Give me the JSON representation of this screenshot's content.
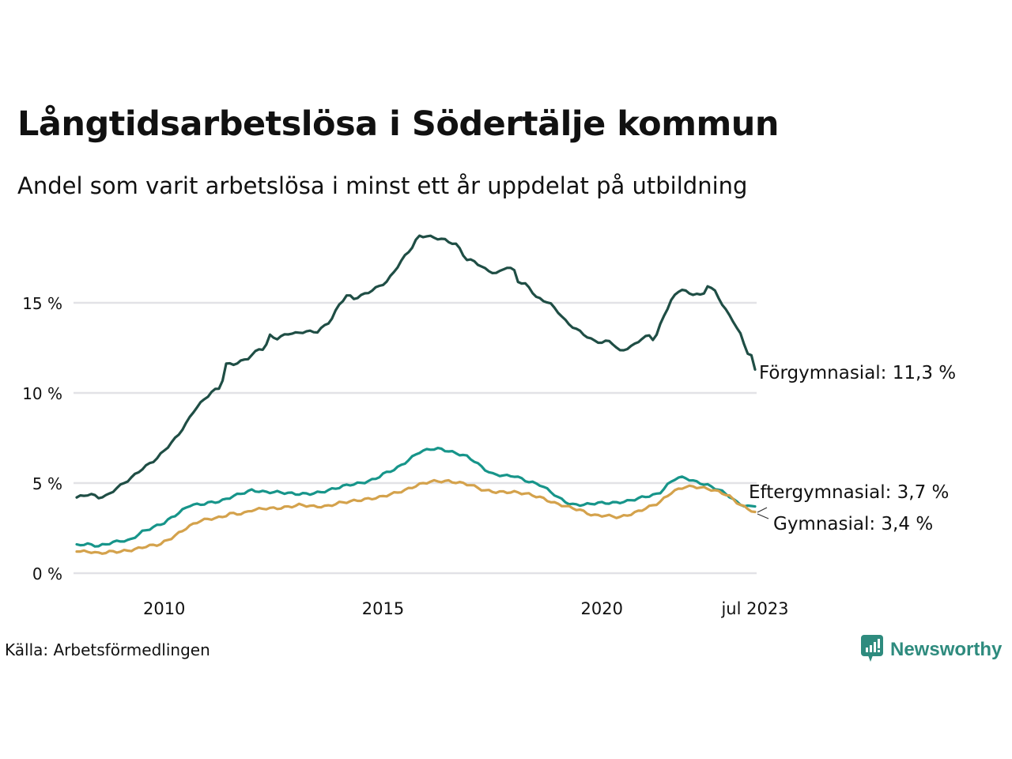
{
  "header": {
    "title": "Långtidsarbetslösa i Södertälje kommun",
    "subtitle": "Andel som varit arbetslösa i minst ett år uppdelat på utbildning"
  },
  "footer": {
    "source": "Källa: Arbetsförmedlingen",
    "brand": "Newsworthy",
    "brand_icon": "bar-chart-speech-bubble-icon",
    "brand_color": "#2e8b7e"
  },
  "chart_data": {
    "type": "line",
    "title": "Långtidsarbetslösa i Södertälje kommun",
    "subtitle": "Andel som varit arbetslösa i minst ett år uppdelat på utbildning",
    "xlabel": "",
    "ylabel": "",
    "x_start": "2008-01",
    "x_end": "2023-07",
    "frequency": "monthly",
    "x_range": [
      2008.0,
      2023.5
    ],
    "ylim": [
      0,
      19
    ],
    "grid": true,
    "legend": "none (direct end labels, right)",
    "y_ticks": [
      {
        "value": 0,
        "label": "0 %"
      },
      {
        "value": 5,
        "label": "5 %"
      },
      {
        "value": 10,
        "label": "10 %"
      },
      {
        "value": 15,
        "label": "15 %"
      }
    ],
    "x_ticks": [
      {
        "value": 2010.0,
        "label": "2010"
      },
      {
        "value": 2015.0,
        "label": "2015"
      },
      {
        "value": 2020.0,
        "label": "2020"
      },
      {
        "value": 2023.5,
        "label": "jul 2023"
      }
    ],
    "series": [
      {
        "name": "Förgymnasial",
        "color": "#1f4e45",
        "end_label": "Förgymnasial: 11,3 %",
        "last_value": 11.3,
        "keypoints": [
          [
            2008.0,
            4.2
          ],
          [
            2008.3,
            4.4
          ],
          [
            2008.5,
            4.2
          ],
          [
            2008.7,
            4.3
          ],
          [
            2008.9,
            4.7
          ],
          [
            2009.2,
            5.2
          ],
          [
            2009.5,
            5.8
          ],
          [
            2009.8,
            6.3
          ],
          [
            2010.0,
            6.8
          ],
          [
            2010.3,
            7.6
          ],
          [
            2010.5,
            8.3
          ],
          [
            2010.7,
            9.1
          ],
          [
            2010.9,
            9.6
          ],
          [
            2011.1,
            10.1
          ],
          [
            2011.3,
            10.3
          ],
          [
            2011.4,
            11.6
          ],
          [
            2011.6,
            11.6
          ],
          [
            2011.9,
            11.9
          ],
          [
            2012.2,
            12.5
          ],
          [
            2012.3,
            12.4
          ],
          [
            2012.4,
            13.2
          ],
          [
            2012.6,
            13.0
          ],
          [
            2012.8,
            13.3
          ],
          [
            2013.0,
            13.3
          ],
          [
            2013.2,
            13.4
          ],
          [
            2013.5,
            13.4
          ],
          [
            2013.8,
            14.0
          ],
          [
            2014.0,
            14.9
          ],
          [
            2014.2,
            15.5
          ],
          [
            2014.3,
            15.2
          ],
          [
            2014.6,
            15.5
          ],
          [
            2014.9,
            15.9
          ],
          [
            2015.1,
            16.2
          ],
          [
            2015.3,
            16.9
          ],
          [
            2015.5,
            17.6
          ],
          [
            2015.7,
            18.2
          ],
          [
            2015.8,
            18.7
          ],
          [
            2016.0,
            18.7
          ],
          [
            2016.2,
            18.6
          ],
          [
            2016.4,
            18.5
          ],
          [
            2016.7,
            18.2
          ],
          [
            2016.9,
            17.4
          ],
          [
            2017.1,
            17.3
          ],
          [
            2017.3,
            16.9
          ],
          [
            2017.6,
            16.6
          ],
          [
            2017.8,
            17.0
          ],
          [
            2018.0,
            16.8
          ],
          [
            2018.1,
            16.1
          ],
          [
            2018.3,
            16.0
          ],
          [
            2018.5,
            15.3
          ],
          [
            2018.8,
            15.0
          ],
          [
            2019.0,
            14.5
          ],
          [
            2019.2,
            13.9
          ],
          [
            2019.5,
            13.4
          ],
          [
            2019.8,
            12.9
          ],
          [
            2020.0,
            12.8
          ],
          [
            2020.2,
            12.9
          ],
          [
            2020.4,
            12.3
          ],
          [
            2020.7,
            12.6
          ],
          [
            2020.9,
            13.0
          ],
          [
            2021.1,
            13.2
          ],
          [
            2021.2,
            12.9
          ],
          [
            2021.4,
            14.2
          ],
          [
            2021.6,
            15.2
          ],
          [
            2021.8,
            15.8
          ],
          [
            2022.0,
            15.5
          ],
          [
            2022.2,
            15.5
          ],
          [
            2022.3,
            15.3
          ],
          [
            2022.4,
            16.0
          ],
          [
            2022.6,
            15.6
          ],
          [
            2022.8,
            14.7
          ],
          [
            2023.0,
            14.0
          ],
          [
            2023.2,
            13.1
          ],
          [
            2023.3,
            12.3
          ],
          [
            2023.45,
            12.0
          ],
          [
            2023.5,
            11.3
          ]
        ]
      },
      {
        "name": "Eftergymnasial",
        "color": "#17958a",
        "end_label": "Eftergymnasial:  3,7 %",
        "last_value": 3.7,
        "keypoints": [
          [
            2008.0,
            1.6
          ],
          [
            2008.3,
            1.6
          ],
          [
            2008.5,
            1.5
          ],
          [
            2008.8,
            1.7
          ],
          [
            2009.0,
            1.8
          ],
          [
            2009.2,
            1.8
          ],
          [
            2009.5,
            2.3
          ],
          [
            2009.8,
            2.6
          ],
          [
            2010.0,
            2.8
          ],
          [
            2010.3,
            3.3
          ],
          [
            2010.6,
            3.8
          ],
          [
            2010.8,
            3.8
          ],
          [
            2011.0,
            3.9
          ],
          [
            2011.3,
            4.0
          ],
          [
            2011.6,
            4.3
          ],
          [
            2012.0,
            4.6
          ],
          [
            2012.3,
            4.5
          ],
          [
            2012.6,
            4.5
          ],
          [
            2013.0,
            4.4
          ],
          [
            2013.3,
            4.4
          ],
          [
            2013.6,
            4.5
          ],
          [
            2013.9,
            4.7
          ],
          [
            2014.2,
            4.9
          ],
          [
            2014.5,
            5.0
          ],
          [
            2014.8,
            5.2
          ],
          [
            2015.0,
            5.5
          ],
          [
            2015.3,
            5.8
          ],
          [
            2015.6,
            6.3
          ],
          [
            2015.8,
            6.7
          ],
          [
            2016.1,
            6.9
          ],
          [
            2016.3,
            6.9
          ],
          [
            2016.6,
            6.7
          ],
          [
            2016.9,
            6.5
          ],
          [
            2017.1,
            6.2
          ],
          [
            2017.3,
            5.8
          ],
          [
            2017.5,
            5.5
          ],
          [
            2017.8,
            5.4
          ],
          [
            2018.0,
            5.4
          ],
          [
            2018.3,
            5.1
          ],
          [
            2018.6,
            4.9
          ],
          [
            2018.9,
            4.4
          ],
          [
            2019.0,
            4.2
          ],
          [
            2019.3,
            3.8
          ],
          [
            2019.6,
            3.8
          ],
          [
            2019.9,
            3.9
          ],
          [
            2020.3,
            3.9
          ],
          [
            2020.6,
            4.0
          ],
          [
            2020.9,
            4.2
          ],
          [
            2021.1,
            4.3
          ],
          [
            2021.3,
            4.4
          ],
          [
            2021.5,
            4.9
          ],
          [
            2021.7,
            5.3
          ],
          [
            2021.9,
            5.3
          ],
          [
            2022.1,
            5.1
          ],
          [
            2022.4,
            4.9
          ],
          [
            2022.7,
            4.6
          ],
          [
            2022.9,
            4.3
          ],
          [
            2023.1,
            3.9
          ],
          [
            2023.3,
            3.7
          ],
          [
            2023.5,
            3.7
          ]
        ]
      },
      {
        "name": "Gymnasial",
        "color": "#d4a24c",
        "end_label": "Gymnasial:  3,4 %",
        "last_value": 3.4,
        "keypoints": [
          [
            2008.0,
            1.2
          ],
          [
            2008.3,
            1.2
          ],
          [
            2008.5,
            1.1
          ],
          [
            2008.8,
            1.2
          ],
          [
            2009.0,
            1.2
          ],
          [
            2009.3,
            1.3
          ],
          [
            2009.6,
            1.5
          ],
          [
            2009.9,
            1.6
          ],
          [
            2010.2,
            2.0
          ],
          [
            2010.5,
            2.5
          ],
          [
            2010.8,
            2.9
          ],
          [
            2011.0,
            3.0
          ],
          [
            2011.3,
            3.1
          ],
          [
            2011.5,
            3.3
          ],
          [
            2011.8,
            3.3
          ],
          [
            2012.0,
            3.5
          ],
          [
            2012.3,
            3.6
          ],
          [
            2012.6,
            3.6
          ],
          [
            2012.9,
            3.7
          ],
          [
            2013.1,
            3.8
          ],
          [
            2013.4,
            3.7
          ],
          [
            2013.7,
            3.7
          ],
          [
            2014.0,
            3.9
          ],
          [
            2014.3,
            4.0
          ],
          [
            2014.6,
            4.1
          ],
          [
            2014.9,
            4.2
          ],
          [
            2015.2,
            4.4
          ],
          [
            2015.5,
            4.6
          ],
          [
            2015.8,
            4.9
          ],
          [
            2016.1,
            5.1
          ],
          [
            2016.5,
            5.1
          ],
          [
            2016.8,
            5.0
          ],
          [
            2017.0,
            4.9
          ],
          [
            2017.3,
            4.6
          ],
          [
            2017.6,
            4.5
          ],
          [
            2018.0,
            4.5
          ],
          [
            2018.3,
            4.4
          ],
          [
            2018.6,
            4.2
          ],
          [
            2018.9,
            3.9
          ],
          [
            2019.2,
            3.7
          ],
          [
            2019.5,
            3.5
          ],
          [
            2019.8,
            3.2
          ],
          [
            2020.1,
            3.2
          ],
          [
            2020.4,
            3.1
          ],
          [
            2020.7,
            3.3
          ],
          [
            2021.0,
            3.6
          ],
          [
            2021.3,
            3.9
          ],
          [
            2021.6,
            4.5
          ],
          [
            2021.9,
            4.8
          ],
          [
            2022.1,
            4.8
          ],
          [
            2022.4,
            4.7
          ],
          [
            2022.7,
            4.5
          ],
          [
            2022.9,
            4.3
          ],
          [
            2023.1,
            3.9
          ],
          [
            2023.3,
            3.6
          ],
          [
            2023.5,
            3.4
          ]
        ]
      }
    ]
  }
}
